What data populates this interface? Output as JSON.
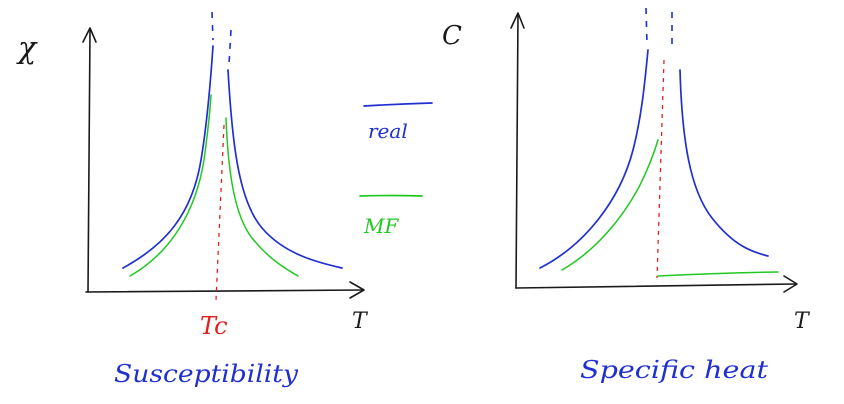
{
  "colors": {
    "axis": "#1a1a1a",
    "real": "#1f2fd0",
    "mean_field": "#22c822",
    "critical": "#e02020",
    "caption": "#1f2fd0"
  },
  "left_plot": {
    "y_axis_label": "χ",
    "x_axis_label": "T",
    "critical_label": "Tc",
    "caption": "Susceptibility"
  },
  "legend": {
    "real_label": "real",
    "mf_label": "MF"
  },
  "right_plot": {
    "y_axis_label": "C",
    "x_axis_label": "T",
    "caption": "Specific heat"
  }
}
